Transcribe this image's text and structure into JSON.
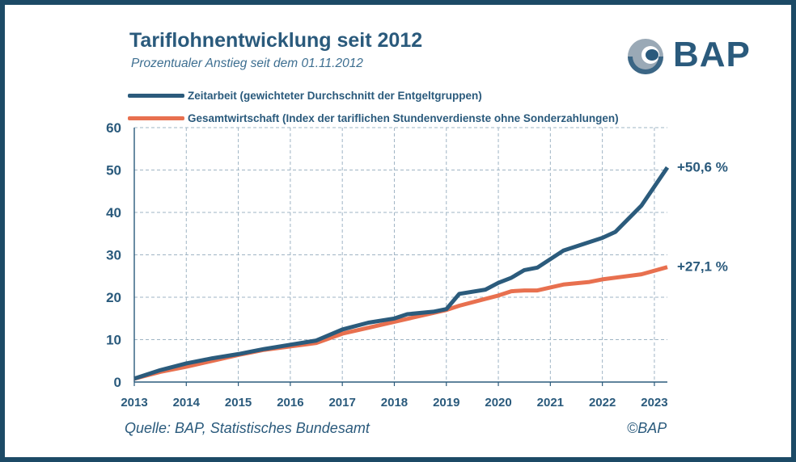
{
  "header": {
    "title": "Tariflohnentwicklung seit 2012",
    "subtitle": "Prozentualer Anstieg seit dem 01.11.2012"
  },
  "logo": {
    "text": "BAP",
    "icon": "bap-logo-icon"
  },
  "legend": [
    {
      "label": "Zeitarbeit (gewichteter Durchschnitt der Entgeltgruppen)",
      "color": "#2b5b7c"
    },
    {
      "label": "Gesamtwirtschaft (Index der tariflichen Stundenverdienste ohne Sonderzahlungen)",
      "color": "#e8704f"
    }
  ],
  "footer": {
    "source": "Quelle: BAP, Statistisches Bundesamt",
    "copyright": "©BAP"
  },
  "chart_data": {
    "type": "line",
    "title": "Tariflohnentwicklung seit 2012",
    "subtitle": "Prozentualer Anstieg seit dem 01.11.2012",
    "xlabel": "",
    "ylabel": "",
    "xlim": [
      2013,
      2023.25
    ],
    "ylim": [
      0,
      60
    ],
    "xticks": [
      2013,
      2014,
      2015,
      2016,
      2017,
      2018,
      2019,
      2020,
      2021,
      2022,
      2023
    ],
    "yticks": [
      0,
      10,
      20,
      30,
      40,
      50,
      60
    ],
    "grid": true,
    "legend_position": "top-left",
    "series": [
      {
        "name": "Zeitarbeit (gewichteter Durchschnitt der Entgeltgruppen)",
        "color": "#2b5b7c",
        "end_label": "+50,6 %",
        "points": [
          [
            2013.0,
            0.8
          ],
          [
            2013.5,
            2.8
          ],
          [
            2014.0,
            4.4
          ],
          [
            2014.5,
            5.6
          ],
          [
            2015.0,
            6.6
          ],
          [
            2015.25,
            7.2
          ],
          [
            2015.5,
            7.8
          ],
          [
            2016.0,
            8.8
          ],
          [
            2016.5,
            9.8
          ],
          [
            2017.0,
            12.4
          ],
          [
            2017.5,
            14.0
          ],
          [
            2018.0,
            15.0
          ],
          [
            2018.25,
            16.0
          ],
          [
            2018.75,
            16.6
          ],
          [
            2019.0,
            17.2
          ],
          [
            2019.25,
            20.8
          ],
          [
            2019.75,
            21.8
          ],
          [
            2020.0,
            23.4
          ],
          [
            2020.25,
            24.6
          ],
          [
            2020.5,
            26.4
          ],
          [
            2020.75,
            27.0
          ],
          [
            2021.25,
            31.0
          ],
          [
            2021.5,
            32.0
          ],
          [
            2022.0,
            34.0
          ],
          [
            2022.25,
            35.4
          ],
          [
            2022.75,
            41.6
          ],
          [
            2023.25,
            50.6
          ]
        ]
      },
      {
        "name": "Gesamtwirtschaft (Index der tariflichen Stundenverdienste ohne Sonderzahlungen)",
        "color": "#e8704f",
        "end_label": "+27,1 %",
        "points": [
          [
            2013.0,
            0.8
          ],
          [
            2013.5,
            2.4
          ],
          [
            2014.0,
            3.6
          ],
          [
            2014.5,
            5.0
          ],
          [
            2015.0,
            6.4
          ],
          [
            2015.25,
            7.0
          ],
          [
            2015.5,
            7.6
          ],
          [
            2016.0,
            8.4
          ],
          [
            2016.5,
            9.2
          ],
          [
            2017.0,
            11.4
          ],
          [
            2017.5,
            12.8
          ],
          [
            2018.0,
            14.2
          ],
          [
            2018.5,
            15.6
          ],
          [
            2019.0,
            17.0
          ],
          [
            2019.25,
            18.0
          ],
          [
            2019.75,
            19.6
          ],
          [
            2020.0,
            20.4
          ],
          [
            2020.25,
            21.4
          ],
          [
            2020.5,
            21.6
          ],
          [
            2020.75,
            21.6
          ],
          [
            2021.25,
            23.0
          ],
          [
            2021.75,
            23.6
          ],
          [
            2022.0,
            24.2
          ],
          [
            2022.75,
            25.4
          ],
          [
            2023.25,
            27.1
          ]
        ]
      }
    ]
  }
}
